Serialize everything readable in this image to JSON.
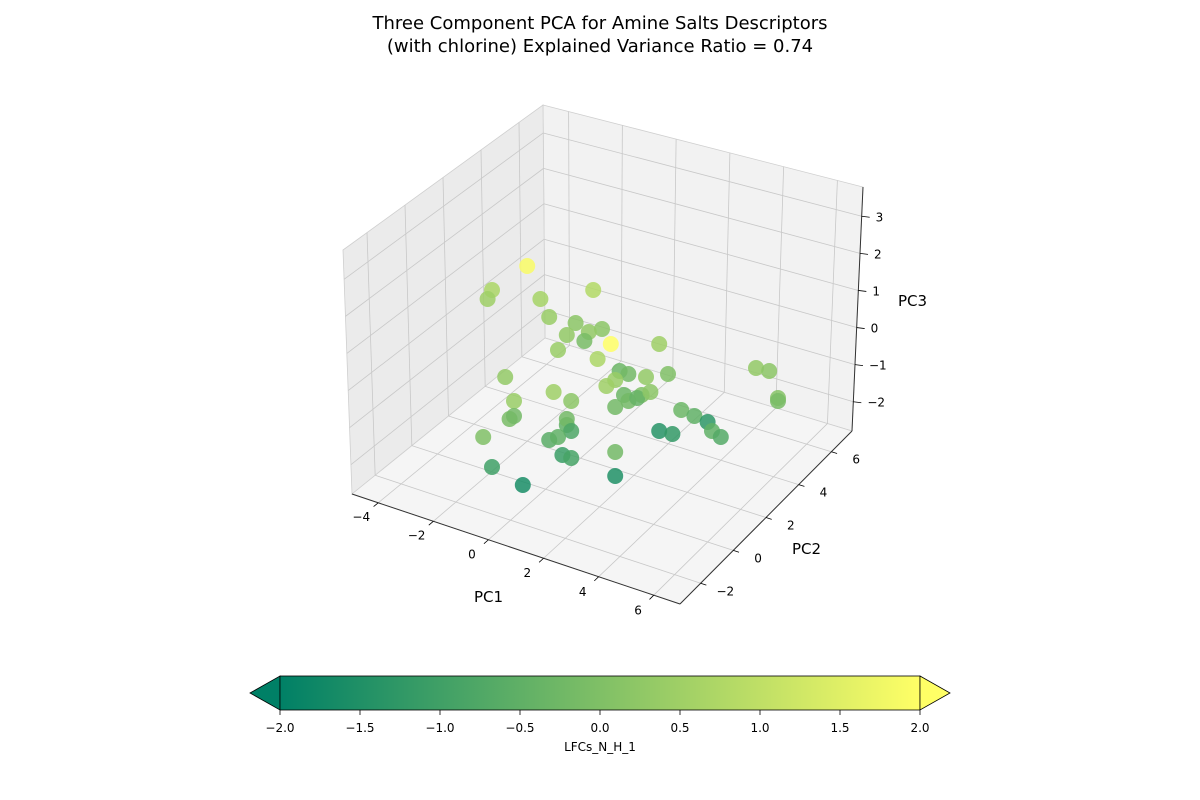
{
  "chart_data": {
    "type": "scatter3d",
    "title_lines": [
      "Three Component PCA for Amine Salts Descriptors",
      "(with chlorine) Explained Variance Ratio = 0.74"
    ],
    "xlabel": "PC1",
    "ylabel": "PC2",
    "zlabel": "PC3",
    "x_ticks": [
      "−4",
      "−2",
      "0",
      "2",
      "4",
      "6"
    ],
    "y_ticks": [
      "−2",
      "0",
      "2",
      "4",
      "6"
    ],
    "z_ticks": [
      "−2",
      "−1",
      "0",
      "1",
      "2",
      "3"
    ],
    "grid": true,
    "colorbar": {
      "label": "LFCs_N_H_1",
      "ticks": [
        "−2.0",
        "−1.5",
        "−1.0",
        "−0.5",
        "0.0",
        "0.5",
        "1.0",
        "1.5",
        "2.0"
      ],
      "range": [
        -2.0,
        2.0
      ],
      "colormap": "summer",
      "color_low": "#008066",
      "color_high": "#ffff66",
      "extend": "both",
      "placement": "bottom"
    },
    "points_projected": [
      {
        "u": 0.38,
        "v": 0.78,
        "c": 1.9
      },
      {
        "u": 0.3,
        "v": 0.7,
        "c": 0.7
      },
      {
        "u": 0.29,
        "v": 0.67,
        "c": 0.5
      },
      {
        "u": 0.41,
        "v": 0.67,
        "c": 0.6
      },
      {
        "u": 0.43,
        "v": 0.61,
        "c": 0.4
      },
      {
        "u": 0.49,
        "v": 0.59,
        "c": 0.2
      },
      {
        "u": 0.47,
        "v": 0.55,
        "c": 0.3
      },
      {
        "u": 0.53,
        "v": 0.7,
        "c": 0.8
      },
      {
        "u": 0.55,
        "v": 0.57,
        "c": 0.2
      },
      {
        "u": 0.52,
        "v": 0.56,
        "c": 0.3
      },
      {
        "u": 0.51,
        "v": 0.53,
        "c": -0.1
      },
      {
        "u": 0.57,
        "v": 0.52,
        "c": 2.0
      },
      {
        "u": 0.68,
        "v": 0.52,
        "c": 0.5
      },
      {
        "u": 0.45,
        "v": 0.5,
        "c": 0.4
      },
      {
        "u": 0.54,
        "v": 0.47,
        "c": 0.7
      },
      {
        "u": 0.59,
        "v": 0.43,
        "c": -0.3
      },
      {
        "u": 0.61,
        "v": 0.42,
        "c": -0.2
      },
      {
        "u": 0.58,
        "v": 0.4,
        "c": 0.4
      },
      {
        "u": 0.56,
        "v": 0.38,
        "c": 0.5
      },
      {
        "u": 0.65,
        "v": 0.41,
        "c": 0.3
      },
      {
        "u": 0.7,
        "v": 0.42,
        "c": 0.0
      },
      {
        "u": 0.33,
        "v": 0.41,
        "c": 0.3
      },
      {
        "u": 0.44,
        "v": 0.36,
        "c": 0.5
      },
      {
        "u": 0.35,
        "v": 0.33,
        "c": 0.4
      },
      {
        "u": 0.48,
        "v": 0.33,
        "c": 0.2
      },
      {
        "u": 0.6,
        "v": 0.35,
        "c": -0.3
      },
      {
        "u": 0.61,
        "v": 0.33,
        "c": -0.2
      },
      {
        "u": 0.64,
        "v": 0.35,
        "c": 0.0
      },
      {
        "u": 0.63,
        "v": 0.34,
        "c": -0.4
      },
      {
        "u": 0.66,
        "v": 0.36,
        "c": 0.2
      },
      {
        "u": 0.58,
        "v": 0.31,
        "c": -0.2
      },
      {
        "u": 0.73,
        "v": 0.3,
        "c": -0.3
      },
      {
        "u": 0.76,
        "v": 0.28,
        "c": -0.5
      },
      {
        "u": 0.79,
        "v": 0.26,
        "c": -1.3
      },
      {
        "u": 0.8,
        "v": 0.23,
        "c": -0.5
      },
      {
        "u": 0.82,
        "v": 0.21,
        "c": -0.7
      },
      {
        "u": 0.34,
        "v": 0.27,
        "c": -0.1
      },
      {
        "u": 0.35,
        "v": 0.28,
        "c": -0.2
      },
      {
        "u": 0.47,
        "v": 0.25,
        "c": -0.5
      },
      {
        "u": 0.47,
        "v": 0.27,
        "c": -0.2
      },
      {
        "u": 0.48,
        "v": 0.23,
        "c": -0.8
      },
      {
        "u": 0.43,
        "v": 0.2,
        "c": -0.6
      },
      {
        "u": 0.45,
        "v": 0.21,
        "c": -0.5
      },
      {
        "u": 0.68,
        "v": 0.23,
        "c": -1.4
      },
      {
        "u": 0.71,
        "v": 0.22,
        "c": -1.2
      },
      {
        "u": 0.28,
        "v": 0.21,
        "c": 0.0
      },
      {
        "u": 0.58,
        "v": 0.16,
        "c": -0.2
      },
      {
        "u": 0.46,
        "v": 0.15,
        "c": -1.1
      },
      {
        "u": 0.48,
        "v": 0.14,
        "c": -0.9
      },
      {
        "u": 0.3,
        "v": 0.11,
        "c": -1.0
      },
      {
        "u": 0.58,
        "v": 0.08,
        "c": -1.5
      },
      {
        "u": 0.37,
        "v": 0.05,
        "c": -1.6
      },
      {
        "u": 0.9,
        "v": 0.44,
        "c": 0.3
      },
      {
        "u": 0.93,
        "v": 0.43,
        "c": 0.2
      },
      {
        "u": 0.95,
        "v": 0.34,
        "c": 0.1
      },
      {
        "u": 0.95,
        "v": 0.33,
        "c": -0.1
      }
    ]
  }
}
